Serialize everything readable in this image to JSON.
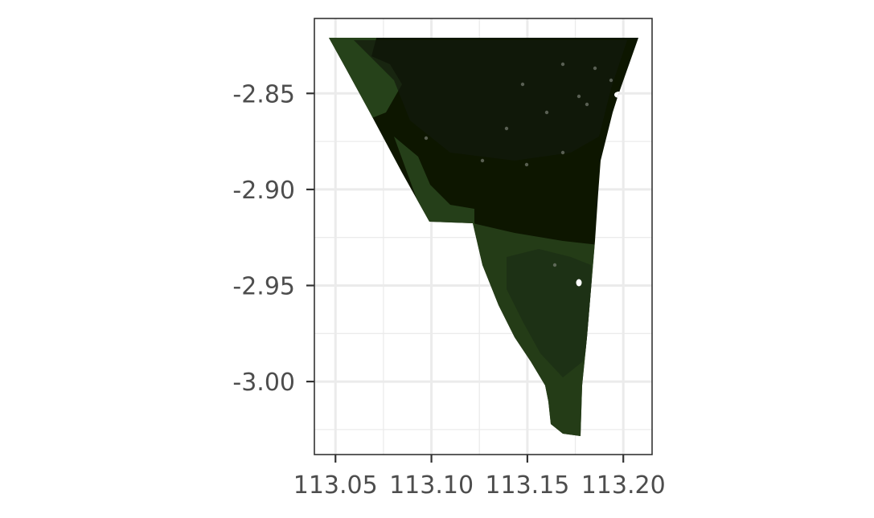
{
  "map": {
    "type": "raster-map",
    "x_axis": {
      "range": [
        113.039,
        113.215
      ],
      "major_ticks": [
        113.05,
        113.1,
        113.15,
        113.2
      ],
      "minor_ticks": [
        113.075,
        113.125,
        113.175
      ],
      "tick_labels": [
        "113.05",
        "113.10",
        "113.15",
        "113.20"
      ]
    },
    "y_axis": {
      "range": [
        -3.038,
        -2.811
      ],
      "major_ticks": [
        -2.85,
        -2.9,
        -2.95,
        -3.0
      ],
      "minor_ticks": [
        -2.875,
        -2.925,
        -2.975,
        -3.025
      ],
      "tick_labels": [
        "-2.85",
        "-2.90",
        "-2.95",
        "-3.00"
      ]
    },
    "grid": true,
    "colors": {
      "panel_border": "#333333",
      "grid_line": "#ebebeb",
      "tick_label": "#4d4d4d",
      "vegetation_dark": "#151d10",
      "vegetation_mid": "#1e3015",
      "vegetation_light": "#2c4a1f"
    }
  }
}
